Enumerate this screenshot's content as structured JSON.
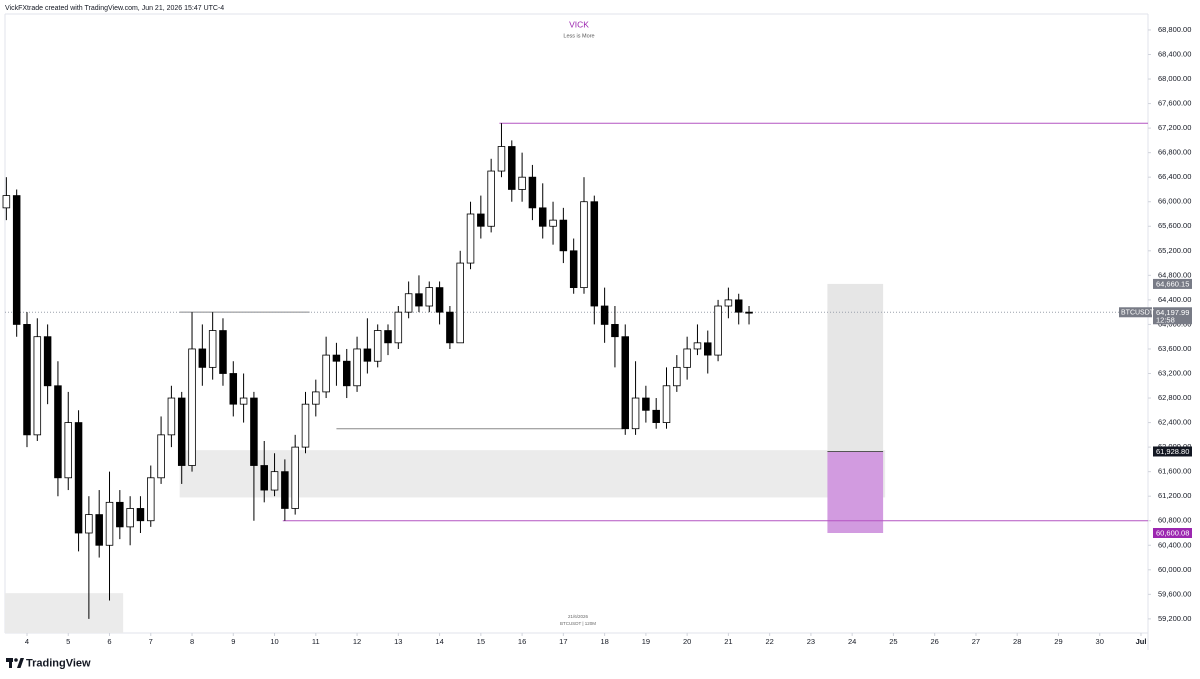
{
  "header": "VickFXtrade created with TradingView.com, Jun 21, 2026 15:47 UTC-4",
  "footer": {
    "logo": "TradingView"
  },
  "chart_data": {
    "type": "candlestick",
    "title": "VICK",
    "subtitle": "Less is More",
    "watermark": [
      "21/6/2026",
      "BTCUSDT | 120M"
    ],
    "up_color": "#ffffff",
    "down_color": "#000000",
    "wick_color": "#000000",
    "x": [
      3.5,
      3.75,
      4,
      4.25,
      4.5,
      4.75,
      5,
      5.25,
      5.5,
      5.75,
      6,
      6.25,
      6.5,
      6.75,
      7,
      7.25,
      7.5,
      7.75,
      8,
      8.25,
      8.5,
      8.75,
      9,
      9.25,
      9.5,
      9.75,
      10,
      10.25,
      10.5,
      10.75,
      11,
      11.25,
      11.5,
      11.75,
      12,
      12.25,
      12.5,
      12.75,
      13,
      13.25,
      13.5,
      13.75,
      14,
      14.25,
      14.5,
      14.75,
      15,
      15.25,
      15.5,
      15.75,
      16,
      16.25,
      16.5,
      16.75,
      17,
      17.25,
      17.5,
      17.75,
      18,
      18.25,
      18.5,
      18.75,
      19,
      19.25,
      19.5,
      19.75,
      20,
      20.25,
      20.5,
      20.75,
      21,
      21.25,
      21.5
    ],
    "open": [
      65900,
      66100,
      64000,
      62200,
      63800,
      63000,
      61500,
      62400,
      60600,
      60900,
      60400,
      61100,
      60700,
      61000,
      60800,
      61500,
      62200,
      62800,
      61700,
      63600,
      63300,
      63900,
      63200,
      62700,
      62800,
      61700,
      61300,
      61600,
      61000,
      62000,
      62700,
      62900,
      63500,
      63400,
      63000,
      63600,
      63400,
      63900,
      63700,
      64200,
      64500,
      64300,
      64600,
      64200,
      63700,
      65000,
      65800,
      65600,
      66500,
      66900,
      66200,
      66400,
      65900,
      65600,
      65700,
      65200,
      64600,
      66000,
      64300,
      64000,
      63800,
      62300,
      62800,
      62600,
      62400,
      63000,
      63300,
      63600,
      63700,
      63500,
      64300,
      64400,
      64200
    ],
    "high": [
      66400,
      66200,
      64200,
      64100,
      64000,
      63400,
      62900,
      62600,
      61200,
      61300,
      61600,
      61300,
      61200,
      61200,
      61700,
      62500,
      63000,
      62900,
      64200,
      64000,
      64200,
      64100,
      63400,
      63200,
      62900,
      62100,
      61900,
      61800,
      62200,
      62900,
      63100,
      63800,
      63700,
      63600,
      63800,
      64100,
      64000,
      64000,
      64300,
      64700,
      64800,
      64700,
      64700,
      64300,
      65200,
      66000,
      66100,
      66700,
      67280,
      67000,
      66800,
      66600,
      66300,
      66000,
      65900,
      65400,
      66400,
      66100,
      64600,
      64300,
      64000,
      63400,
      63000,
      62800,
      63300,
      63500,
      63800,
      64000,
      63900,
      64400,
      64600,
      64500,
      64300
    ],
    "low": [
      65700,
      63800,
      62000,
      62100,
      62700,
      61200,
      61300,
      60300,
      59200,
      60200,
      59500,
      60500,
      60400,
      60600,
      60700,
      61400,
      62000,
      61400,
      61600,
      63000,
      63100,
      63000,
      62500,
      62400,
      60800,
      61100,
      61200,
      60800,
      60900,
      61900,
      62500,
      62800,
      63000,
      62800,
      62900,
      63200,
      63300,
      63500,
      63600,
      64100,
      64200,
      64200,
      64000,
      63600,
      63700,
      64900,
      65400,
      65500,
      66400,
      66000,
      66000,
      65700,
      65400,
      65300,
      65000,
      64500,
      64500,
      64000,
      63700,
      63300,
      62200,
      62200,
      62400,
      62300,
      62300,
      62900,
      63100,
      63500,
      63200,
      63400,
      64100,
      64000,
      64000
    ],
    "close": [
      66100,
      64000,
      62200,
      63800,
      63000,
      61500,
      62400,
      60600,
      60900,
      60400,
      61100,
      60700,
      61000,
      60800,
      61500,
      62200,
      62800,
      61700,
      63600,
      63300,
      63900,
      63200,
      62700,
      62800,
      61700,
      61300,
      61600,
      61000,
      62000,
      62700,
      62900,
      63500,
      63400,
      63000,
      63600,
      63400,
      63900,
      63700,
      64200,
      64500,
      64300,
      64600,
      64200,
      63700,
      65000,
      65800,
      65600,
      66500,
      66900,
      66200,
      66400,
      65900,
      65600,
      65700,
      65200,
      64600,
      66000,
      64300,
      64000,
      63800,
      62300,
      62800,
      62600,
      62400,
      63000,
      63300,
      63600,
      63700,
      63500,
      64300,
      64400,
      64200,
      64198
    ],
    "xlim": [
      3.467,
      31.17
    ],
    "xticks": [
      4,
      5,
      6,
      7,
      8,
      9,
      10,
      11,
      12,
      13,
      14,
      15,
      16,
      17,
      18,
      19,
      20,
      21,
      22,
      23,
      24,
      25,
      26,
      27,
      28,
      29,
      30,
      {
        "value": 31,
        "label": "Jul"
      }
    ],
    "ylim": [
      58970,
      69060
    ],
    "yticks": [
      {
        "value": 59200,
        "label": "59,200.00"
      },
      {
        "value": 59600,
        "label": "59,600.00"
      },
      {
        "value": 60000,
        "label": "60,000.00"
      },
      {
        "value": 60400,
        "label": "60,400.00"
      },
      {
        "value": 60800,
        "label": "60,800.00"
      },
      {
        "value": 61200,
        "label": "61,200.00"
      },
      {
        "value": 61600,
        "label": "61,600.00"
      },
      {
        "value": 62000,
        "label": "62,000.00"
      },
      {
        "value": 62400,
        "label": "62,400.00"
      },
      {
        "value": 62800,
        "label": "62,800.00"
      },
      {
        "value": 63200,
        "label": "63,200.00"
      },
      {
        "value": 63600,
        "label": "63,600.00"
      },
      {
        "value": 64000,
        "label": "64,000.00"
      },
      {
        "value": 64400,
        "label": "64,400.00"
      },
      {
        "value": 64800,
        "label": "64,800.00"
      },
      {
        "value": 65200,
        "label": "65,200.00"
      },
      {
        "value": 65600,
        "label": "65,600.00"
      },
      {
        "value": 66000,
        "label": "66,000.00"
      },
      {
        "value": 66400,
        "label": "66,400.00"
      },
      {
        "value": 66800,
        "label": "66,800.00"
      },
      {
        "value": 67200,
        "label": "67,200.00"
      },
      {
        "value": 67600,
        "label": "67,600.00"
      },
      {
        "value": 68000,
        "label": "68,000.00"
      },
      {
        "value": 68400,
        "label": "68,400.00"
      },
      {
        "value": 68800,
        "label": "68,800.00"
      }
    ],
    "grid": false,
    "zones": [
      {
        "top": 61950,
        "bottom": 61180,
        "from": 7.7,
        "to": 24.8,
        "color": "#ebebeb"
      },
      {
        "top": 59620,
        "bottom": 58970,
        "from": 3.467,
        "to": 6.33,
        "color": "#ebebeb"
      }
    ],
    "levels": [
      {
        "price": 67280,
        "from": 15.45,
        "to": 31.17,
        "color": "#b455c2"
      },
      {
        "price": 60800,
        "from": 10.2,
        "to": 31.17,
        "color": "#b455c2"
      },
      {
        "price": 64200,
        "from": 7.7,
        "to": 10.85,
        "color": "#888888"
      },
      {
        "price": 62300,
        "from": 11.5,
        "to": 18.45,
        "color": "#888888"
      }
    ],
    "position": {
      "from": 23.4,
      "to": 24.75,
      "levels": [
        {
          "value": 64660.15,
          "label": "64,660.15",
          "tag_color": "#787b86"
        },
        {
          "value": 61928.8,
          "label": "61,928.80",
          "tag_color": "#131722"
        },
        {
          "value": 60600.08,
          "label": "60,600.08",
          "tag_color": "#9c27b0"
        }
      ],
      "colors": [
        "#e6e6e6",
        "#d29be0"
      ]
    },
    "last": {
      "symbol": "BTCUSDT",
      "value": 64197.99,
      "label": "64,197.99",
      "countdown": "12:58",
      "color": "#787b86"
    }
  }
}
